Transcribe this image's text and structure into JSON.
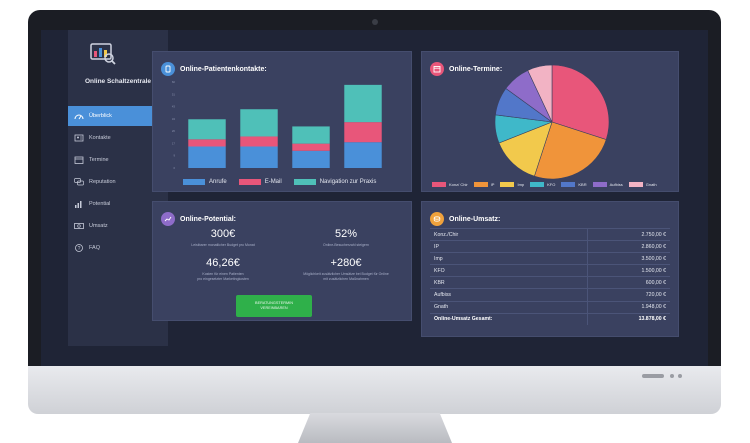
{
  "sidebar": {
    "title": "Online Schaltzentrale",
    "items": [
      {
        "label": "Überblick",
        "icon": "gauge-icon",
        "active": true
      },
      {
        "label": "Kontakte",
        "icon": "contacts-icon",
        "active": false
      },
      {
        "label": "Termine",
        "icon": "calendar-icon",
        "active": false
      },
      {
        "label": "Reputation",
        "icon": "speech-bubbles-icon",
        "active": false
      },
      {
        "label": "Potential",
        "icon": "bar-chart-icon",
        "active": false
      },
      {
        "label": "Umsatz",
        "icon": "money-icon",
        "active": false
      },
      {
        "label": "FAQ",
        "icon": "question-icon",
        "active": false
      }
    ]
  },
  "contacts_panel": {
    "title": "Online-Patientenkontakte:",
    "badge_color": "#4a90d9"
  },
  "appointments_panel": {
    "title": "Online-Termine:",
    "badge_color": "#e8567a"
  },
  "potential_panel": {
    "title": "Online-Potential:",
    "badge_color": "#8e6cc9",
    "stats": [
      {
        "value": "300€",
        "sub": "Leistbarer monatlicher Budget pro Monat"
      },
      {
        "value": "52%",
        "sub": "Online-Besucherzahl steigern"
      },
      {
        "value": "46,26€",
        "sub": "Kosten für einen Patienten\npro eingesetzter Marketingkosten"
      },
      {
        "value": "+280€",
        "sub": "Möglichkeit zusätzlicher Umsätze bei Budget für Online\nmit zusätzlichen Maßnahmen"
      }
    ],
    "cta_line1": "BERATUNGSTERMIN",
    "cta_line2": "VEREINBAREN"
  },
  "revenue_panel": {
    "title": "Online-Umsatz:",
    "badge_color": "#f0a23c",
    "rows": [
      {
        "label": "Konz./Chir",
        "value": "2.750,00 €"
      },
      {
        "label": "IP",
        "value": "2.860,00 €"
      },
      {
        "label": "Imp",
        "value": "3.500,00 €"
      },
      {
        "label": "KFO",
        "value": "1.500,00 €"
      },
      {
        "label": "KBR",
        "value": "600,00 €"
      },
      {
        "label": "Aufbiss",
        "value": "720,00 €"
      },
      {
        "label": "Gnath",
        "value": "1.948,00 €"
      }
    ],
    "total_label": "Online-Umsatz Gesamt:",
    "total_value": "13.878,00 €"
  },
  "chart_data": [
    {
      "type": "bar",
      "stacked": true,
      "categories": [
        "",
        "",
        "",
        ""
      ],
      "series": [
        {
          "name": "Anrufe",
          "color": "#4a90d9",
          "values": [
            15,
            15,
            12,
            18
          ]
        },
        {
          "name": "E-Mail",
          "color": "#e8567a",
          "values": [
            5,
            7,
            5,
            14
          ]
        },
        {
          "name": "Navigation zur Praxis",
          "color": "#4fc0b8",
          "values": [
            14,
            19,
            12,
            26
          ]
        }
      ],
      "ylim": [
        0,
        60
      ],
      "legend_position": "bottom"
    },
    {
      "type": "pie",
      "slices": [
        {
          "name": "Konz/ Chir",
          "color": "#e8567a",
          "value": 30
        },
        {
          "name": "IP",
          "color": "#f0943a",
          "value": 25
        },
        {
          "name": "Imp",
          "color": "#f2c94c",
          "value": 14
        },
        {
          "name": "KFO",
          "color": "#3fb8c9",
          "value": 8
        },
        {
          "name": "KBR",
          "color": "#5277c9",
          "value": 8
        },
        {
          "name": "Aufbiss",
          "color": "#8e6cc9",
          "value": 8
        },
        {
          "name": "Gnath",
          "color": "#f2b3c4",
          "value": 7
        }
      ],
      "legend_position": "bottom"
    }
  ]
}
